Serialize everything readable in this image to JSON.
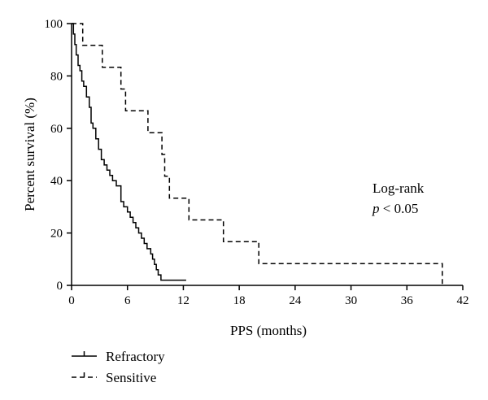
{
  "chart_data": {
    "type": "line",
    "title": "",
    "xlabel": "PPS (months)",
    "ylabel": "Percent survival (%)",
    "xlim": [
      0,
      42
    ],
    "ylim": [
      0,
      100
    ],
    "xticks": [
      0,
      6,
      12,
      18,
      24,
      30,
      36,
      42
    ],
    "yticks": [
      0,
      20,
      40,
      60,
      80,
      100
    ],
    "grid": false,
    "legend_position": "bottom-left",
    "annotation": {
      "line1": "Log-rank",
      "p_symbol": "p",
      "p_rest": " < 0.05"
    },
    "series": [
      {
        "name": "Refractory",
        "style": "solid",
        "color": "#000000",
        "x": [
          0,
          0.2,
          0.35,
          0.5,
          0.7,
          0.9,
          1.1,
          1.3,
          1.6,
          1.9,
          2.1,
          2.3,
          2.6,
          2.9,
          3.2,
          3.5,
          3.8,
          4.1,
          4.4,
          4.8,
          5.3,
          5.6,
          6.0,
          6.3,
          6.6,
          6.9,
          7.2,
          7.5,
          7.8,
          8.1,
          8.5,
          8.7,
          8.9,
          9.1,
          9.3,
          9.6,
          10.0,
          12.3
        ],
        "y": [
          100,
          96,
          92,
          88,
          84,
          82,
          78,
          76,
          72,
          68,
          62,
          60,
          56,
          52,
          48,
          46,
          44,
          42,
          40,
          38,
          32,
          30,
          28,
          26,
          24,
          22,
          20,
          18,
          16,
          14,
          12,
          10,
          8,
          6,
          4,
          2,
          2,
          2
        ]
      },
      {
        "name": "Sensitive",
        "style": "dashed",
        "color": "#000000",
        "x": [
          0,
          1.2,
          3.3,
          5.3,
          5.8,
          6.6,
          8.2,
          9.7,
          10.0,
          10.5,
          12.6,
          16.3,
          20.1,
          39.8
        ],
        "y": [
          100,
          91.7,
          83.3,
          75,
          66.7,
          66.7,
          58.3,
          50,
          41.7,
          33.3,
          25,
          16.7,
          8.3,
          0
        ]
      }
    ]
  }
}
